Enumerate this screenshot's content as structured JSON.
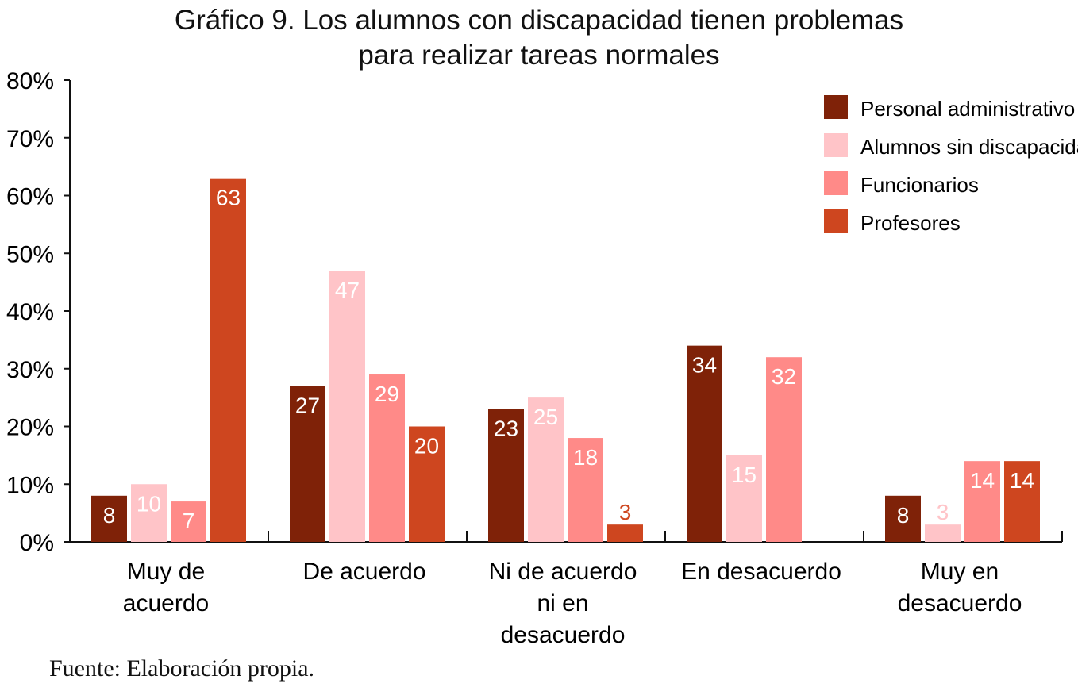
{
  "chart_data": {
    "type": "bar",
    "title_line1": "Gráfico 9. Los alumnos con discapacidad tienen problemas",
    "title_line2": "para realizar tareas normales",
    "categories": [
      [
        "Muy de",
        "acuerdo"
      ],
      [
        "De acuerdo"
      ],
      [
        "Ni de acuerdo",
        "ni en",
        "desacuerdo"
      ],
      [
        "En desacuerdo"
      ],
      [
        "Muy en",
        "desacuerdo"
      ]
    ],
    "series": [
      {
        "name": "Personal administrativo",
        "color": "#7F2208",
        "values": [
          8,
          27,
          23,
          34,
          8
        ]
      },
      {
        "name": "Alumnos sin discapacidad",
        "color": "#FFC4C8",
        "values": [
          10,
          47,
          25,
          15,
          3
        ]
      },
      {
        "name": "Funcionarios",
        "color": "#FF8A88",
        "values": [
          7,
          29,
          18,
          32,
          14
        ]
      },
      {
        "name": "Profesores",
        "color": "#CE461F",
        "values": [
          63,
          20,
          3,
          null,
          14
        ]
      }
    ],
    "ylim": [
      0,
      80
    ],
    "yticks": [
      "0%",
      "10%",
      "20%",
      "30%",
      "40%",
      "50%",
      "60%",
      "70%",
      "80%"
    ],
    "legend_position": "top-right",
    "grid": false
  },
  "source": "Fuente: Elaboración propia."
}
